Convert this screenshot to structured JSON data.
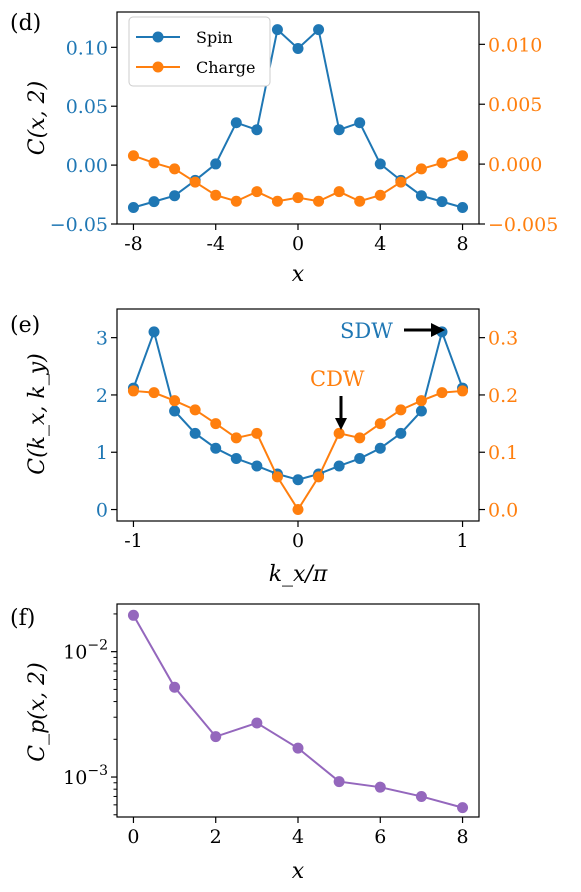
{
  "colors": {
    "spin": "#1f77b4",
    "charge": "#ff7f0e",
    "pairing": "#9467bd",
    "axis": "#000000"
  },
  "chart_data": [
    {
      "type": "line",
      "panel_label": "(d)",
      "xlabel": "x",
      "ylabel": "C(x, 2)",
      "xlim": [
        -8.8,
        8.8
      ],
      "ylim_left": [
        -0.05,
        0.13
      ],
      "ylim_right": [
        -0.005,
        0.0127
      ],
      "x_ticks": [
        -8,
        -4,
        0,
        4,
        8
      ],
      "x_tick_labels": [
        "-8",
        "-4",
        "0",
        "4",
        "8"
      ],
      "y_ticks_left": [
        -0.05,
        0.0,
        0.05,
        0.1
      ],
      "y_tick_labels_left": [
        "−0.05",
        "0.00",
        "0.05",
        "0.10"
      ],
      "y_ticks_right": [
        -0.005,
        0.0,
        0.005,
        0.01
      ],
      "y_tick_labels_right": [
        "−0.005",
        "0.000",
        "0.005",
        "0.010"
      ],
      "legend_position": "top-left",
      "x": [
        -8,
        -7,
        -6,
        -5,
        -4,
        -3,
        -2,
        -1,
        0,
        1,
        2,
        3,
        4,
        5,
        6,
        7,
        8
      ],
      "series": [
        {
          "name": "Spin",
          "axis": "left",
          "color": "#1f77b4",
          "values": [
            -0.036,
            -0.031,
            -0.026,
            -0.013,
            0.001,
            0.036,
            0.03,
            0.115,
            0.099,
            0.115,
            0.03,
            0.036,
            0.001,
            -0.013,
            -0.026,
            -0.031,
            -0.036
          ]
        },
        {
          "name": "Charge",
          "axis": "right",
          "color": "#ff7f0e",
          "values": [
            0.0007,
            0.0001,
            -0.0004,
            -0.0015,
            -0.0026,
            -0.0031,
            -0.0023,
            -0.0031,
            -0.0028,
            -0.0031,
            -0.0023,
            -0.0031,
            -0.0026,
            -0.0015,
            -0.0004,
            0.0001,
            0.0007
          ]
        }
      ]
    },
    {
      "type": "line",
      "panel_label": "(e)",
      "xlabel": "k_x/π",
      "ylabel": "C(k_x, k_y)",
      "xlim": [
        -1.1,
        1.1
      ],
      "ylim_left": [
        -0.2,
        3.5
      ],
      "ylim_right": [
        -0.02,
        0.35
      ],
      "x_ticks": [
        -1,
        0,
        1
      ],
      "x_tick_labels": [
        "-1",
        "0",
        "1"
      ],
      "y_ticks_left": [
        0,
        1,
        2,
        3
      ],
      "y_tick_labels_left": [
        "0",
        "1",
        "2",
        "3"
      ],
      "y_ticks_right": [
        0.0,
        0.1,
        0.2,
        0.3
      ],
      "y_tick_labels_right": [
        "0.0",
        "0.1",
        "0.2",
        "0.3"
      ],
      "annotations": [
        {
          "text": "SDW",
          "color": "#1f77b4",
          "x": 0.875,
          "y_left": 3.1
        },
        {
          "text": "CDW",
          "color": "#ff7f0e",
          "x": 0.25,
          "y_right": 0.133
        }
      ],
      "x": [
        -1.0,
        -0.875,
        -0.75,
        -0.625,
        -0.5,
        -0.375,
        -0.25,
        -0.125,
        0.0,
        0.125,
        0.25,
        0.375,
        0.5,
        0.625,
        0.75,
        0.875,
        1.0
      ],
      "series": [
        {
          "axis": "left",
          "color": "#1f77b4",
          "values": [
            2.12,
            3.1,
            1.72,
            1.33,
            1.07,
            0.89,
            0.76,
            0.62,
            0.52,
            0.62,
            0.76,
            0.89,
            1.07,
            1.33,
            1.72,
            3.1,
            2.12
          ]
        },
        {
          "axis": "right",
          "color": "#ff7f0e",
          "values": [
            0.207,
            0.204,
            0.19,
            0.174,
            0.15,
            0.125,
            0.133,
            0.057,
            0.0,
            0.057,
            0.133,
            0.125,
            0.15,
            0.174,
            0.19,
            0.204,
            0.207
          ]
        }
      ]
    },
    {
      "type": "line",
      "panel_label": "(f)",
      "xlabel": "x",
      "ylabel": "C_p(x, 2)",
      "y_scale": "log",
      "xlim": [
        -0.4,
        8.4
      ],
      "ylim": [
        0.00048,
        0.024
      ],
      "x_ticks": [
        0,
        2,
        4,
        6,
        8
      ],
      "x_tick_labels": [
        "0",
        "2",
        "4",
        "6",
        "8"
      ],
      "y_major_ticks": [
        0.001,
        0.01
      ],
      "y_tick_labels": [
        "10−3",
        "10−2"
      ],
      "x": [
        0,
        1,
        2,
        3,
        4,
        5,
        6,
        7,
        8
      ],
      "series": [
        {
          "color": "#9467bd",
          "values": [
            0.0195,
            0.0052,
            0.0021,
            0.0027,
            0.0017,
            0.00092,
            0.00083,
            0.0007,
            0.00057
          ]
        }
      ]
    }
  ]
}
